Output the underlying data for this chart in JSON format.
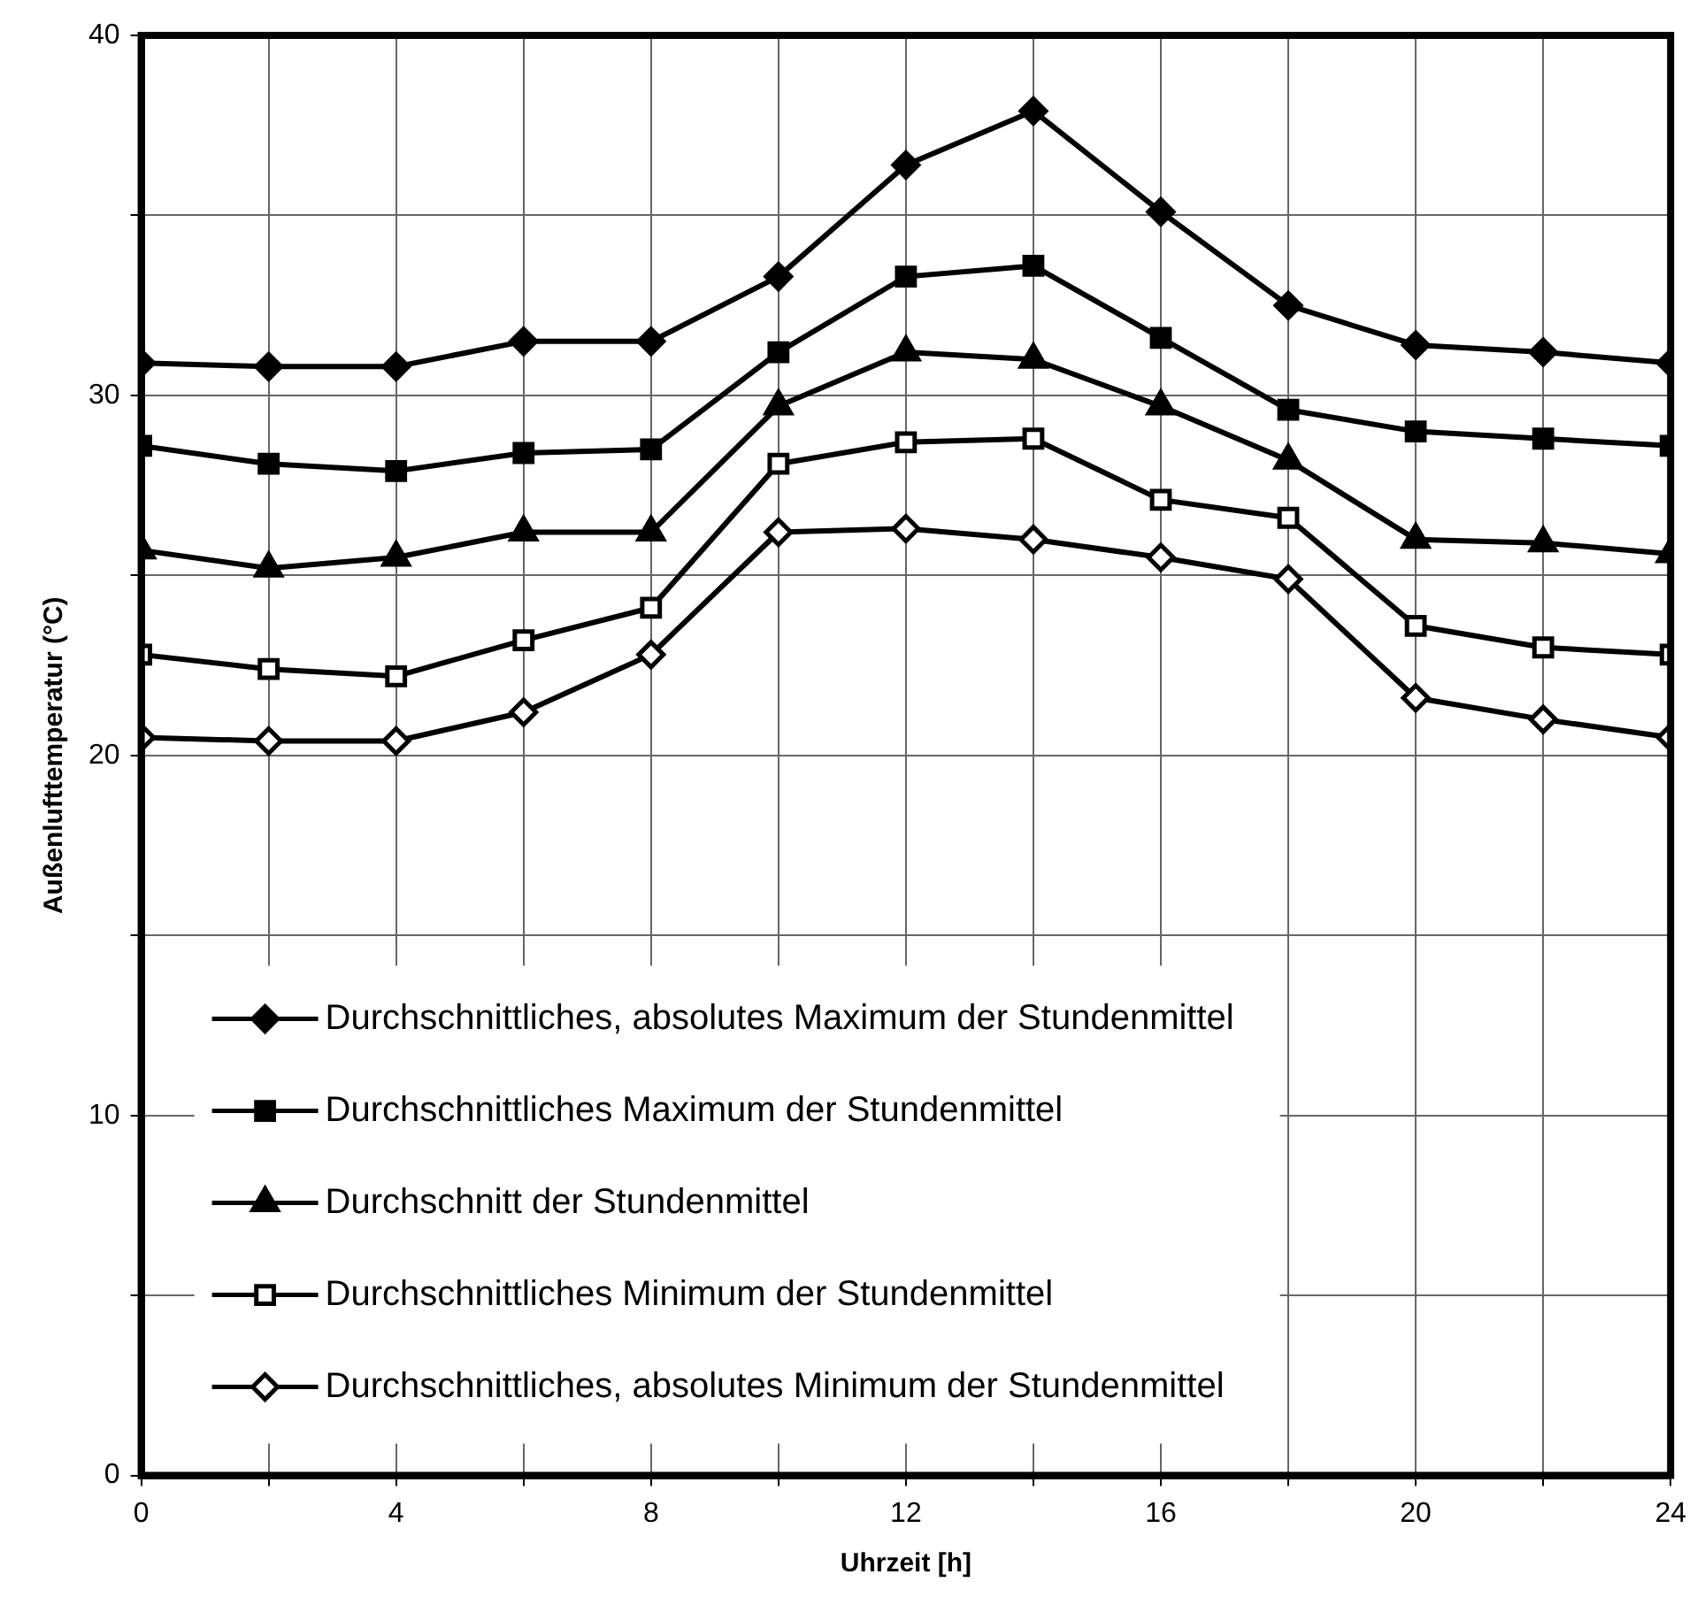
{
  "chart_data": {
    "type": "line",
    "xlabel": "Uhrzeit [h]",
    "ylabel": "Außenlufttemperatur (°C)",
    "x": [
      0,
      2,
      4,
      6,
      8,
      10,
      12,
      14,
      16,
      18,
      20,
      22,
      24
    ],
    "xlim": [
      0,
      24
    ],
    "xticks": [
      0,
      {
        "value": 2,
        "label": null
      },
      4,
      {
        "value": 6,
        "label": null
      },
      8,
      {
        "value": 10,
        "label": null
      },
      12,
      {
        "value": 14,
        "label": null
      },
      16,
      {
        "value": 18,
        "label": null
      },
      20,
      {
        "value": 22,
        "label": null
      },
      24
    ],
    "ylim": [
      0,
      40
    ],
    "yticks": [
      0,
      {
        "value": 5,
        "label": null
      },
      10,
      {
        "value": 15,
        "label": null
      },
      20,
      {
        "value": 25,
        "label": null
      },
      30,
      {
        "value": 35,
        "label": null
      },
      40
    ],
    "grid": true,
    "legend": "bottom left",
    "line_style": "solid",
    "series": [
      {
        "name": "Durchschnittliches, absolutes Maximum der Stundenmittel",
        "color": "#000000",
        "marker": "diamond",
        "values": [
          30.9,
          30.8,
          30.8,
          31.5,
          31.5,
          33.3,
          36.4,
          37.9,
          35.1,
          32.5,
          31.4,
          31.2,
          30.9
        ]
      },
      {
        "name": "Durchschnittliches Maximum der Stundenmittel",
        "color": "#000000",
        "marker": "square",
        "values": [
          28.6,
          28.1,
          27.9,
          28.4,
          28.5,
          31.2,
          33.3,
          33.6,
          31.6,
          29.6,
          29.0,
          28.8,
          28.6
        ]
      },
      {
        "name": "Durchschnitt der Stundenmittel",
        "color": "#000000",
        "marker": "triangle",
        "values": [
          25.7,
          25.2,
          25.5,
          26.2,
          26.2,
          29.7,
          31.2,
          31.0,
          29.7,
          28.2,
          26.0,
          25.9,
          25.6
        ]
      },
      {
        "name": "Durchschnittliches Minimum der Stundenmittel",
        "color": "#000000",
        "marker": "square",
        "values": [
          22.8,
          22.4,
          22.2,
          23.2,
          24.1,
          28.1,
          28.7,
          28.8,
          27.1,
          26.6,
          23.6,
          23.0,
          22.8
        ]
      },
      {
        "name": "Durchschnittliches, absolutes Minimum der Stundenmittel",
        "color": "#000000",
        "marker": "diamond",
        "values": [
          20.5,
          20.4,
          20.4,
          21.2,
          22.8,
          26.2,
          26.3,
          26.0,
          25.5,
          24.9,
          21.6,
          21.0,
          20.5
        ]
      }
    ]
  }
}
